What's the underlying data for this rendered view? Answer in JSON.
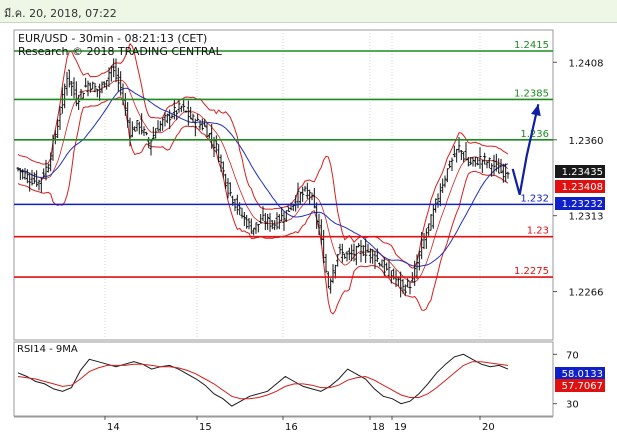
{
  "window": {
    "timestamp": "มี.ค. 20, 2018, 07:22"
  },
  "chart_data": [
    {
      "type": "candlestick",
      "title": "EUR/USD - 30min - 08:21:13 (CET)",
      "subtitle": "Research © 2018 TRADING CENTRAL",
      "ylim": [
        1.2236,
        1.2428
      ],
      "y_ticks": [
        "1.2408",
        "1.2360",
        "1.2313",
        "1.2266"
      ],
      "x_ticks": [
        "14",
        "15",
        "16",
        "18",
        "19",
        "20"
      ],
      "levels": [
        {
          "label": "1.2415",
          "value": 1.2415,
          "color": "#1e8a1e"
        },
        {
          "label": "1.2385",
          "value": 1.2385,
          "color": "#1e8a1e"
        },
        {
          "label": "1.236",
          "value": 1.236,
          "color": "#1e8a1e"
        },
        {
          "label": "1.232",
          "value": 1.232,
          "color": "#1020c8"
        },
        {
          "label": "1.23",
          "value": 1.23,
          "color": "#e01010"
        },
        {
          "label": "1.2275",
          "value": 1.2275,
          "color": "#e01010"
        }
      ],
      "price_tags": [
        {
          "label": "1.23435",
          "value": 1.23435,
          "bg": "#1a1a1a",
          "fg": "#ffffff"
        },
        {
          "label": "1.23408",
          "value": 1.23408,
          "bg": "#e01010",
          "fg": "#ffffff"
        },
        {
          "label": "1.23232",
          "value": 1.23232,
          "bg": "#1020c8",
          "fg": "#ffffff"
        }
      ],
      "path": [
        {
          "t": 0,
          "p": 1.2342
        },
        {
          "t": 10,
          "p": 1.2336
        },
        {
          "t": 18,
          "p": 1.2334
        },
        {
          "t": 26,
          "p": 1.2345
        },
        {
          "t": 34,
          "p": 1.237
        },
        {
          "t": 42,
          "p": 1.24
        },
        {
          "t": 50,
          "p": 1.2385
        },
        {
          "t": 60,
          "p": 1.2395
        },
        {
          "t": 70,
          "p": 1.239
        },
        {
          "t": 80,
          "p": 1.2405
        },
        {
          "t": 88,
          "p": 1.2392
        },
        {
          "t": 96,
          "p": 1.2365
        },
        {
          "t": 104,
          "p": 1.237
        },
        {
          "t": 112,
          "p": 1.2358
        },
        {
          "t": 120,
          "p": 1.2368
        },
        {
          "t": 130,
          "p": 1.2375
        },
        {
          "t": 140,
          "p": 1.238
        },
        {
          "t": 150,
          "p": 1.2372
        },
        {
          "t": 160,
          "p": 1.2368
        },
        {
          "t": 170,
          "p": 1.2355
        },
        {
          "t": 180,
          "p": 1.233
        },
        {
          "t": 190,
          "p": 1.2315
        },
        {
          "t": 200,
          "p": 1.2305
        },
        {
          "t": 210,
          "p": 1.231
        },
        {
          "t": 220,
          "p": 1.2308
        },
        {
          "t": 230,
          "p": 1.2315
        },
        {
          "t": 240,
          "p": 1.2325
        },
        {
          "t": 250,
          "p": 1.2328
        },
        {
          "t": 258,
          "p": 1.2305
        },
        {
          "t": 266,
          "p": 1.227
        },
        {
          "t": 274,
          "p": 1.229
        },
        {
          "t": 284,
          "p": 1.2288
        },
        {
          "t": 294,
          "p": 1.2292
        },
        {
          "t": 304,
          "p": 1.229
        },
        {
          "t": 314,
          "p": 1.228
        },
        {
          "t": 322,
          "p": 1.2275
        },
        {
          "t": 330,
          "p": 1.2268
        },
        {
          "t": 338,
          "p": 1.2272
        },
        {
          "t": 346,
          "p": 1.2295
        },
        {
          "t": 354,
          "p": 1.231
        },
        {
          "t": 362,
          "p": 1.233
        },
        {
          "t": 370,
          "p": 1.2345
        },
        {
          "t": 378,
          "p": 1.2355
        },
        {
          "t": 386,
          "p": 1.2345
        },
        {
          "t": 396,
          "p": 1.2348
        },
        {
          "t": 406,
          "p": 1.2345
        },
        {
          "t": 414,
          "p": 1.234
        },
        {
          "t": 420,
          "p": 1.2342
        }
      ],
      "t_max": 420,
      "forecast_arrow": [
        {
          "t": 424,
          "p": 1.2342
        },
        {
          "t": 430,
          "p": 1.2326
        },
        {
          "t": 436,
          "p": 1.235
        },
        {
          "t": 446,
          "p": 1.2382
        }
      ]
    },
    {
      "type": "line",
      "title": "RSI14 - 9MA",
      "ylim": [
        20,
        80
      ],
      "y_ticks": [
        "70",
        "30"
      ],
      "series": [
        {
          "values": [
            55,
            52,
            48,
            46,
            42,
            40,
            43,
            57,
            66,
            64,
            62,
            60,
            62,
            64,
            62,
            58,
            60,
            61,
            58,
            54,
            50,
            45,
            38,
            34,
            28,
            32,
            36,
            38,
            40,
            46,
            52,
            48,
            44,
            42,
            40,
            44,
            50,
            58,
            54,
            50,
            42,
            36,
            34,
            30,
            32,
            38,
            46,
            55,
            62,
            68,
            70,
            66,
            62,
            60,
            61,
            58
          ]
        },
        {
          "values": [
            52,
            51,
            50,
            48,
            46,
            44,
            45,
            50,
            56,
            59,
            61,
            61,
            61,
            62,
            62,
            61,
            60,
            60,
            59,
            57,
            54,
            50,
            46,
            41,
            36,
            34,
            34,
            35,
            37,
            40,
            44,
            46,
            46,
            45,
            43,
            43,
            45,
            49,
            51,
            52,
            49,
            45,
            41,
            37,
            35,
            35,
            38,
            43,
            49,
            55,
            61,
            64,
            64,
            63,
            62,
            61
          ]
        }
      ],
      "tags": [
        {
          "label": "58.0133",
          "value": 58.0133,
          "bg": "#1020c8",
          "fg": "#ffffff"
        },
        {
          "label": "57.7067",
          "value": 57.7067,
          "bg": "#e01010",
          "fg": "#ffffff"
        }
      ]
    }
  ]
}
